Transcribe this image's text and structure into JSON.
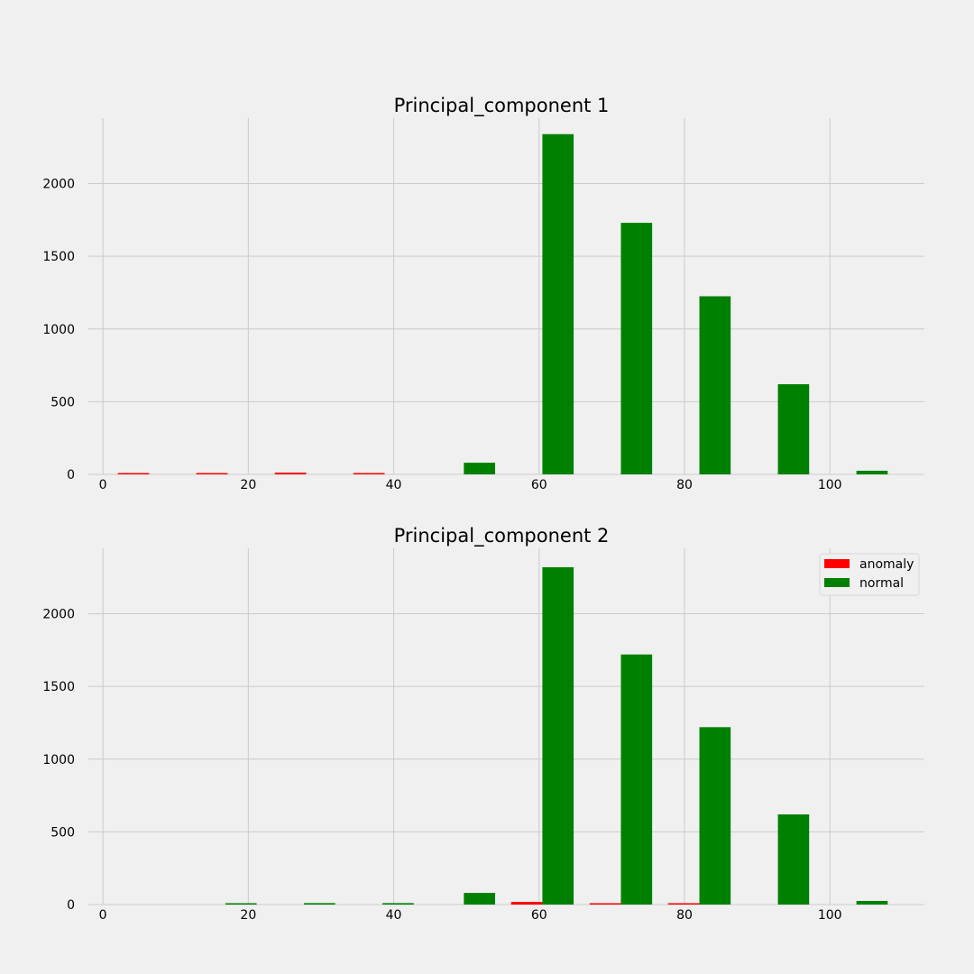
{
  "chart_data": [
    {
      "type": "bar",
      "title": "Principal_component 1",
      "xlim": [
        -2,
        113
      ],
      "ylim": [
        0,
        2450
      ],
      "xticks": [
        0,
        20,
        40,
        60,
        80,
        100
      ],
      "xtick_labels": [
        "0",
        "20",
        "40",
        "60",
        "80",
        "100"
      ],
      "yticks": [
        0,
        500,
        1000,
        1500,
        2000
      ],
      "ytick_labels": [
        "0",
        "500",
        "1000",
        "1500",
        "2000"
      ],
      "grid": true,
      "legend": null,
      "series": [
        {
          "name": "anomaly",
          "color": "#ff0000",
          "bars": [
            {
              "x": 4.2,
              "value": 5
            },
            {
              "x": 15.0,
              "value": 5
            },
            {
              "x": 25.8,
              "value": 12
            },
            {
              "x": 36.6,
              "value": 5
            }
          ]
        },
        {
          "name": "normal",
          "color": "#008000",
          "bars": [
            {
              "x": 51.8,
              "value": 80
            },
            {
              "x": 62.6,
              "value": 2340
            },
            {
              "x": 73.4,
              "value": 1730
            },
            {
              "x": 84.2,
              "value": 1225
            },
            {
              "x": 95.0,
              "value": 620
            },
            {
              "x": 105.8,
              "value": 25
            }
          ]
        }
      ],
      "bar_width": 4.3
    },
    {
      "type": "bar",
      "title": "Principal_component 2",
      "xlim": [
        -2,
        113
      ],
      "ylim": [
        0,
        2450
      ],
      "xticks": [
        0,
        20,
        40,
        60,
        80,
        100
      ],
      "xtick_labels": [
        "0",
        "20",
        "40",
        "60",
        "80",
        "100"
      ],
      "yticks": [
        0,
        500,
        1000,
        1500,
        2000
      ],
      "ytick_labels": [
        "0",
        "500",
        "1000",
        "1500",
        "2000"
      ],
      "grid": true,
      "legend": {
        "placement": "top-right",
        "entries": [
          "anomaly",
          "normal"
        ]
      },
      "series": [
        {
          "name": "anomaly",
          "color": "#ff0000",
          "bars": [
            {
              "x": 58.3,
              "value": 18
            },
            {
              "x": 69.1,
              "value": 5
            },
            {
              "x": 79.9,
              "value": 5
            }
          ]
        },
        {
          "name": "normal",
          "color": "#008000",
          "bars": [
            {
              "x": 19.0,
              "value": 5
            },
            {
              "x": 29.8,
              "value": 10
            },
            {
              "x": 40.6,
              "value": 10
            },
            {
              "x": 51.8,
              "value": 80
            },
            {
              "x": 62.6,
              "value": 2320
            },
            {
              "x": 73.4,
              "value": 1720
            },
            {
              "x": 84.2,
              "value": 1220
            },
            {
              "x": 95.0,
              "value": 620
            },
            {
              "x": 105.8,
              "value": 25
            }
          ]
        }
      ],
      "bar_width": 4.3
    }
  ]
}
